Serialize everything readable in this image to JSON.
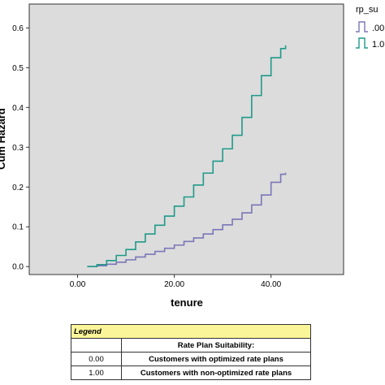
{
  "chart_data": {
    "type": "line",
    "step": true,
    "ylabel": "Cum Hazard",
    "xlabel": "tenure",
    "xlim": [
      -10,
      55
    ],
    "ylim": [
      -0.02,
      0.66
    ],
    "xticks": [
      0,
      20,
      40
    ],
    "xtick_labels": [
      "0.00",
      "20.00",
      "40.00"
    ],
    "yticks": [
      0.0,
      0.1,
      0.2,
      0.3,
      0.4,
      0.5,
      0.6
    ],
    "ytick_labels": [
      "0.0",
      "0.1",
      "0.2",
      "0.3",
      "0.4",
      "0.5",
      "0.6"
    ],
    "grid": false,
    "plot_background": "#dcdcdc",
    "legend_title": "rp_su",
    "legend_placement": "right",
    "series": [
      {
        "name": ".00",
        "color": "#7a76b8",
        "x": [
          2,
          4,
          6,
          8,
          10,
          12,
          14,
          16,
          18,
          20,
          22,
          24,
          26,
          28,
          30,
          32,
          34,
          36,
          38,
          40,
          42,
          43
        ],
        "y": [
          0.0,
          0.002,
          0.006,
          0.011,
          0.017,
          0.024,
          0.031,
          0.038,
          0.046,
          0.054,
          0.063,
          0.072,
          0.082,
          0.093,
          0.105,
          0.119,
          0.135,
          0.155,
          0.18,
          0.212,
          0.232,
          0.236
        ]
      },
      {
        "name": "1.0",
        "color": "#1f9a8a",
        "x": [
          2,
          4,
          6,
          8,
          10,
          12,
          14,
          16,
          18,
          20,
          22,
          24,
          26,
          28,
          30,
          32,
          34,
          36,
          38,
          40,
          42,
          43
        ],
        "y": [
          0.0,
          0.005,
          0.015,
          0.028,
          0.043,
          0.062,
          0.082,
          0.104,
          0.127,
          0.152,
          0.175,
          0.205,
          0.235,
          0.265,
          0.296,
          0.33,
          0.375,
          0.43,
          0.48,
          0.525,
          0.548,
          0.556
        ]
      }
    ]
  },
  "legend_table": {
    "title": "Legend",
    "header_right": "Rate Plan Suitability:",
    "rows": [
      {
        "key": "0.00",
        "desc": "Customers with optimized rate plans"
      },
      {
        "key": "1.00",
        "desc": "Customers with non-optimized rate plans"
      }
    ]
  }
}
